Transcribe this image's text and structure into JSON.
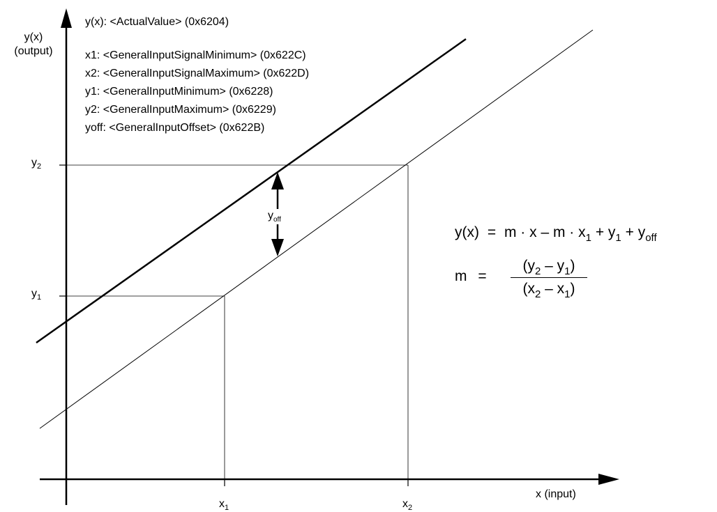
{
  "axes": {
    "y_label_top": "y(x)",
    "y_label_bottom": "(output)",
    "x_label": "x (input)"
  },
  "legend": [
    "y(x): <ActualValue> (0x6204)",
    "x1: <GeneralInputSignalMinimum> (0x622C)",
    "x2: <GeneralInputSignalMaximum> (0x622D)",
    "y1: <GeneralInputMinimum> (0x6228)",
    "y2: <GeneralInputMaximum> (0x6229)",
    "yoff: <GeneralInputOffset> (0x622B)"
  ],
  "ticks": {
    "y1": {
      "base": "y",
      "sub": "1"
    },
    "y2": {
      "base": "y",
      "sub": "2"
    },
    "x1": {
      "base": "x",
      "sub": "1"
    },
    "x2": {
      "base": "x",
      "sub": "2"
    }
  },
  "offset_label": {
    "base": "y",
    "sub": "off"
  },
  "formula": {
    "line1": {
      "lhs": "y(x)",
      "eq": "=",
      "t1": "m · x – m · x",
      "t1_sub": "1",
      "t2": "+ y",
      "t2_sub": "1",
      "t3": "+ y",
      "t3_sub": "off"
    },
    "line2": {
      "lhs": "m",
      "eq": "=",
      "num_a": "(y",
      "num_a_sub": "2",
      "num_b": "– y",
      "num_b_sub": "1",
      "num_c": ")",
      "den_a": "(x",
      "den_a_sub": "2",
      "den_b": "– x",
      "den_b_sub": "1",
      "den_c": ")"
    }
  },
  "colors": {
    "line": "#000000",
    "background": "#ffffff"
  }
}
